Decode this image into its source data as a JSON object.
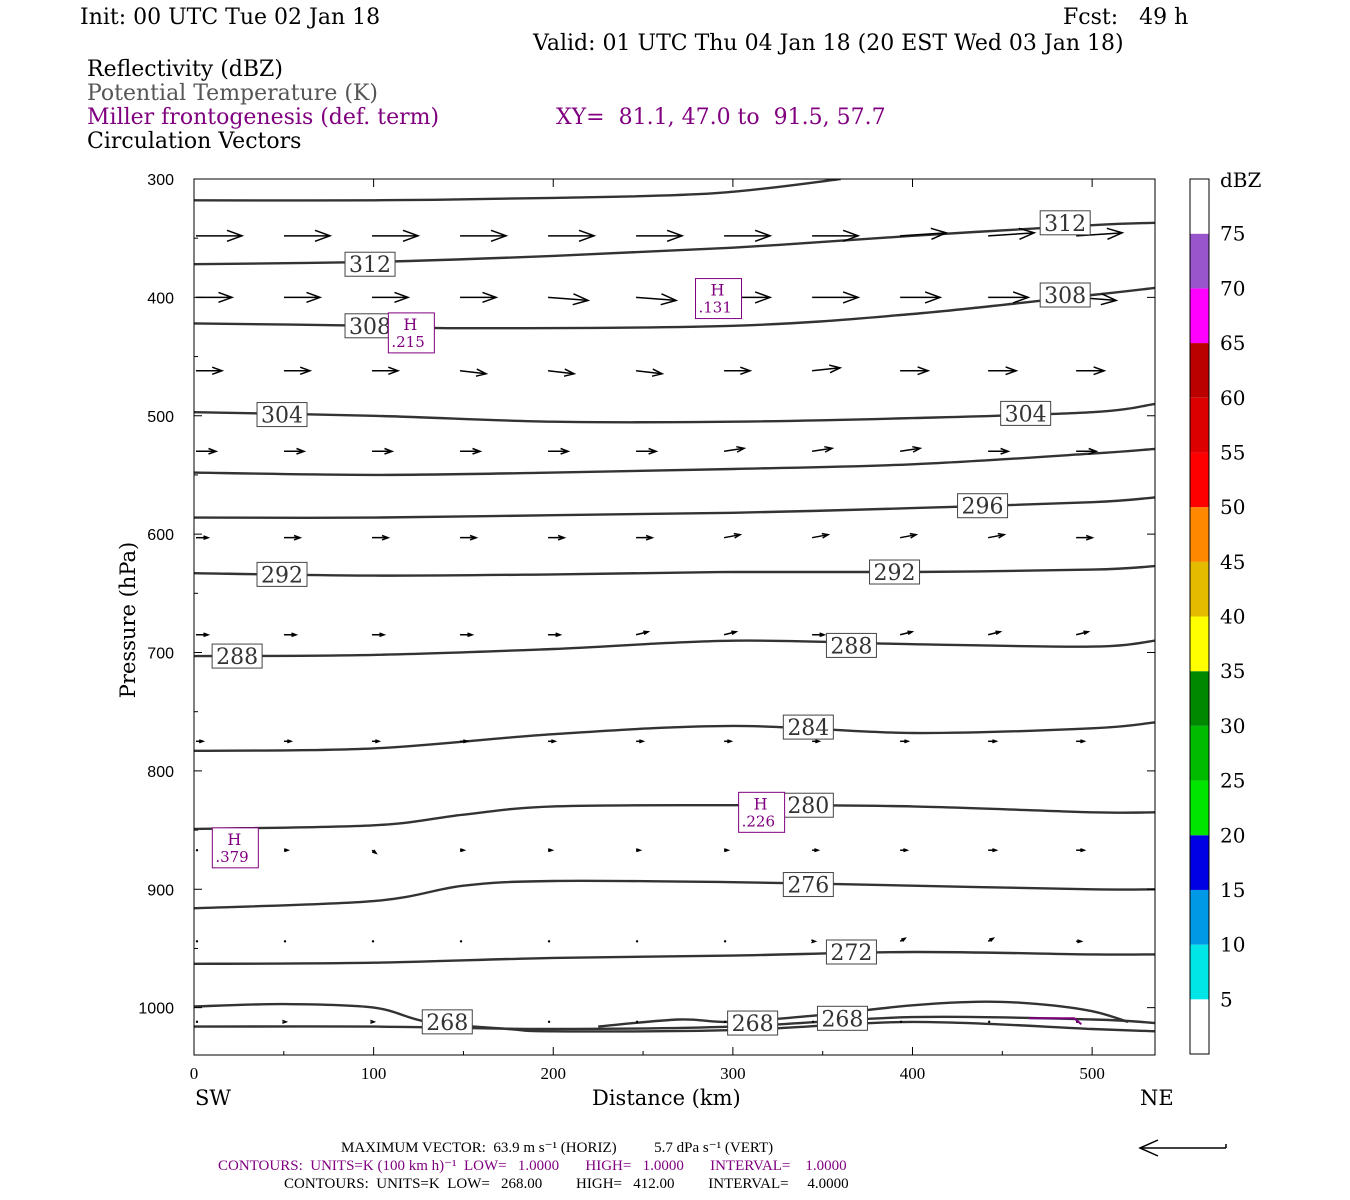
{
  "header": {
    "init": "Init: 00 UTC Tue 02 Jan 18",
    "fcst": "Fcst:   49 h",
    "valid": "Valid: 01 UTC Thu 04 Jan 18 (20 EST Wed 03 Jan 18)"
  },
  "fields": {
    "f1": "Reflectivity (dBZ)",
    "f2": "Potential Temperature (K)",
    "f3": "Miller frontogenesis (def. term)",
    "f4": "Circulation Vectors",
    "xy": "XY=  81.1, 47.0 to  91.5, 57.7"
  },
  "colors": {
    "theta": "#333333",
    "fronto": "#800080",
    "vector": "#000000"
  },
  "chart_data": {
    "type": "line",
    "xlabel": "Distance (km)",
    "ylabel": "Pressure (hPa)",
    "xlim": [
      0,
      535
    ],
    "ylim": [
      1040,
      300
    ],
    "x_ticks": [
      0,
      100,
      200,
      300,
      400,
      500
    ],
    "y_ticks": [
      300,
      400,
      500,
      600,
      700,
      800,
      900,
      1000
    ],
    "x_end_labels": {
      "left": "SW",
      "right": "NE"
    },
    "theta_contours": [
      {
        "level": 316,
        "points": [
          [
            0,
            318
          ],
          [
            100,
            318
          ],
          [
            200,
            316
          ],
          [
            290,
            312
          ],
          [
            360,
            300
          ]
        ]
      },
      {
        "level": 312,
        "points": [
          [
            0,
            372
          ],
          [
            100,
            370
          ],
          [
            200,
            365
          ],
          [
            300,
            358
          ],
          [
            400,
            348
          ],
          [
            500,
            339
          ],
          [
            535,
            337
          ]
        ]
      },
      {
        "level": 308,
        "points": [
          [
            0,
            422
          ],
          [
            100,
            424
          ],
          [
            150,
            426
          ],
          [
            300,
            424
          ],
          [
            400,
            414
          ],
          [
            500,
            398
          ],
          [
            535,
            392
          ]
        ]
      },
      {
        "level": 304,
        "points": [
          [
            0,
            497
          ],
          [
            100,
            500
          ],
          [
            200,
            505
          ],
          [
            300,
            505
          ],
          [
            400,
            502
          ],
          [
            500,
            497
          ],
          [
            535,
            490
          ]
        ]
      },
      {
        "level": 300,
        "points": [
          [
            0,
            548
          ],
          [
            100,
            550
          ],
          [
            200,
            548
          ],
          [
            300,
            545
          ],
          [
            400,
            541
          ],
          [
            500,
            532
          ],
          [
            535,
            528
          ]
        ]
      },
      {
        "level": 296,
        "points": [
          [
            0,
            586
          ],
          [
            100,
            586
          ],
          [
            200,
            584
          ],
          [
            300,
            582
          ],
          [
            400,
            578
          ],
          [
            500,
            573
          ],
          [
            535,
            569
          ]
        ]
      },
      {
        "level": 292,
        "points": [
          [
            0,
            633
          ],
          [
            100,
            635
          ],
          [
            200,
            634
          ],
          [
            300,
            632
          ],
          [
            400,
            632
          ],
          [
            500,
            630
          ],
          [
            535,
            627
          ]
        ]
      },
      {
        "level": 288,
        "points": [
          [
            0,
            703
          ],
          [
            100,
            702
          ],
          [
            200,
            697
          ],
          [
            300,
            690
          ],
          [
            400,
            693
          ],
          [
            500,
            695
          ],
          [
            535,
            690
          ]
        ]
      },
      {
        "level": 284,
        "points": [
          [
            0,
            783
          ],
          [
            100,
            781
          ],
          [
            200,
            769
          ],
          [
            300,
            762
          ],
          [
            400,
            768
          ],
          [
            500,
            764
          ],
          [
            535,
            759
          ]
        ]
      },
      {
        "level": 280,
        "points": [
          [
            0,
            849
          ],
          [
            100,
            846
          ],
          [
            150,
            837
          ],
          [
            200,
            830
          ],
          [
            300,
            829
          ],
          [
            400,
            830
          ],
          [
            500,
            835
          ],
          [
            535,
            835
          ]
        ]
      },
      {
        "level": 276,
        "points": [
          [
            0,
            916
          ],
          [
            100,
            910
          ],
          [
            150,
            897
          ],
          [
            200,
            893
          ],
          [
            300,
            894
          ],
          [
            400,
            897
          ],
          [
            500,
            900
          ],
          [
            535,
            900
          ]
        ]
      },
      {
        "level": 272,
        "points": [
          [
            0,
            963
          ],
          [
            100,
            962
          ],
          [
            200,
            958
          ],
          [
            300,
            956
          ],
          [
            400,
            953
          ],
          [
            500,
            955
          ],
          [
            535,
            955
          ]
        ]
      },
      {
        "level": 268,
        "points": [
          [
            0,
            999
          ],
          [
            50,
            997
          ],
          [
            100,
            1000
          ],
          [
            130,
            1012
          ],
          [
            175,
            1018
          ],
          [
            200,
            1020
          ],
          [
            300,
            1019
          ],
          [
            400,
            1012
          ],
          [
            500,
            1018
          ],
          [
            535,
            1020
          ]
        ]
      },
      {
        "level": 268,
        "points": [
          [
            0,
            1016
          ],
          [
            100,
            1016
          ],
          [
            200,
            1018
          ],
          [
            300,
            1016
          ],
          [
            400,
            1008
          ],
          [
            500,
            1010
          ],
          [
            535,
            1013
          ]
        ]
      },
      {
        "level": 268,
        "points": [
          [
            225,
            1016
          ],
          [
            270,
            1010
          ],
          [
            300,
            1012
          ],
          [
            350,
            1006
          ],
          [
            400,
            998
          ],
          [
            440,
            995
          ],
          [
            470,
            997
          ],
          [
            500,
            1003
          ],
          [
            520,
            1012
          ]
        ]
      }
    ],
    "theta_labels": [
      {
        "text": "312",
        "x": 98,
        "p": 372
      },
      {
        "text": "312",
        "x": 485,
        "p": 337
      },
      {
        "text": "308",
        "x": 98,
        "p": 424
      },
      {
        "text": "308",
        "x": 485,
        "p": 398
      },
      {
        "text": "304",
        "x": 49,
        "p": 499
      },
      {
        "text": "304",
        "x": 463,
        "p": 498
      },
      {
        "text": "296",
        "x": 439,
        "p": 576
      },
      {
        "text": "292",
        "x": 49,
        "p": 634
      },
      {
        "text": "292",
        "x": 390,
        "p": 632
      },
      {
        "text": "288",
        "x": 24,
        "p": 703
      },
      {
        "text": "288",
        "x": 366,
        "p": 694
      },
      {
        "text": "284",
        "x": 342,
        "p": 763
      },
      {
        "text": "280",
        "x": 342,
        "p": 829
      },
      {
        "text": "276",
        "x": 342,
        "p": 896
      },
      {
        "text": "272",
        "x": 366,
        "p": 953
      },
      {
        "text": "268",
        "x": 141,
        "p": 1012
      },
      {
        "text": "268",
        "x": 311,
        "p": 1013
      },
      {
        "text": "268",
        "x": 361,
        "p": 1009
      }
    ],
    "frontogenesis_maxima": [
      {
        "label": "H",
        "value": ".379",
        "x": 23,
        "p": 865
      },
      {
        "label": "H",
        "value": ".226",
        "x": 316,
        "p": 835
      },
      {
        "label": "H",
        "value": ".131",
        "x": 292,
        "p": 401
      },
      {
        "label": "H",
        "value": ".215",
        "x": 121,
        "p": 430
      }
    ],
    "fronto_segment": [
      [
        465,
        1009
      ],
      [
        490,
        1011
      ]
    ],
    "vectors": {
      "x": [
        0,
        49,
        98,
        147,
        196,
        245,
        294,
        343,
        392,
        441,
        490
      ],
      "rows": [
        {
          "p": 348,
          "u": [
            46,
            46,
            46,
            46,
            46,
            46,
            46,
            46,
            46,
            46,
            46
          ],
          "w": [
            0,
            0,
            0,
            0,
            0,
            0,
            0,
            0,
            1,
            1,
            1
          ]
        },
        {
          "p": 400,
          "u": [
            36,
            36,
            36,
            36,
            40,
            40,
            46,
            46,
            40,
            40,
            40
          ],
          "w": [
            0,
            0,
            0,
            0,
            -1,
            -1,
            0,
            0,
            0,
            0,
            -1
          ]
        },
        {
          "p": 462,
          "u": [
            26,
            26,
            26,
            26,
            26,
            26,
            26,
            28,
            28,
            28,
            28
          ],
          "w": [
            0,
            0,
            0,
            -1,
            -1,
            -1,
            0,
            1,
            0,
            0,
            0
          ]
        },
        {
          "p": 530,
          "u": [
            20,
            20,
            20,
            20,
            20,
            20,
            20,
            20,
            20,
            20,
            20
          ],
          "w": [
            0,
            0,
            0,
            0,
            0,
            0,
            1,
            1,
            1,
            0,
            0
          ]
        },
        {
          "p": 603,
          "u": [
            12,
            16,
            16,
            16,
            16,
            16,
            16,
            16,
            16,
            16,
            16
          ],
          "w": [
            0,
            0,
            0,
            0,
            0,
            0,
            1,
            1,
            1,
            1,
            0
          ]
        },
        {
          "p": 685,
          "u": [
            12,
            12,
            12,
            12,
            12,
            12,
            12,
            12,
            12,
            12,
            12
          ],
          "w": [
            0,
            0,
            0,
            0,
            0,
            1,
            1,
            0,
            1,
            1,
            1
          ]
        },
        {
          "p": 775,
          "u": [
            7,
            7,
            7,
            7,
            7,
            7,
            7,
            7,
            8,
            8,
            8
          ],
          "w": [
            0,
            0,
            0,
            0,
            0,
            0,
            0,
            0,
            0,
            0,
            0
          ]
        },
        {
          "p": 867,
          "u": [
            0,
            4,
            4,
            4,
            4,
            4,
            4,
            6,
            7,
            8,
            8
          ],
          "w": [
            0,
            0,
            -1,
            0,
            0,
            0,
            0,
            0,
            0,
            0,
            0
          ]
        },
        {
          "p": 944,
          "u": [
            0,
            1,
            1,
            1,
            1,
            1,
            1,
            3,
            5,
            5,
            5
          ],
          "w": [
            0,
            0,
            0,
            0,
            0,
            0,
            0,
            0,
            1,
            1,
            0
          ]
        },
        {
          "p": 1012,
          "u": [
            0,
            2,
            2,
            0,
            0,
            0,
            0,
            0,
            0,
            0,
            0
          ],
          "w": [
            0,
            0,
            0,
            0,
            0,
            0,
            0,
            0,
            0,
            0,
            0
          ]
        }
      ]
    },
    "colorbar": {
      "title": "dBZ",
      "labels": [
        "5",
        "10",
        "15",
        "20",
        "25",
        "30",
        "35",
        "40",
        "45",
        "50",
        "55",
        "60",
        "65",
        "70",
        "75"
      ],
      "colors": [
        "#ffffff",
        "#00e5e5",
        "#0099e5",
        "#0000e5",
        "#00e500",
        "#00bb00",
        "#008800",
        "#ffff00",
        "#e5bb00",
        "#ff8800",
        "#ff0000",
        "#dd0000",
        "#bb0000",
        "#ff00ff",
        "#9955cc",
        "#ffffff"
      ]
    }
  },
  "footer": {
    "max_vector": "MAXIMUM VECTOR:  63.9 m s⁻¹ (HORIZ)          5.7 dPa s⁻¹ (VERT)",
    "contours1": "CONTOURS:  UNITS=K (100 km h)⁻¹  LOW=   1.0000       HIGH=   1.0000       INTERVAL=    1.0000",
    "contours2": "CONTOURS:  UNITS=K  LOW=   268.00         HIGH=   412.00         INTERVAL=     4.0000"
  }
}
